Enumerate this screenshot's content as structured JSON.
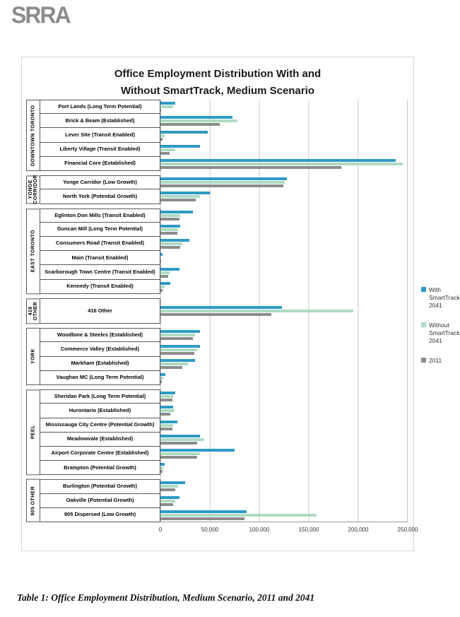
{
  "logo": "SRRA",
  "title_line1": "Office Employment Distribution With and",
  "title_line2": "Without SmartTrack, Medium Scenario",
  "caption": "Table 1: Office Employment Distribution, Medium Scenario, 2011 and 2041",
  "legend": [
    {
      "label": "With SmartTrack, 2041",
      "color": "#2d9bc5"
    },
    {
      "label": "Without SmartTrack, 2041",
      "color": "#aedbc3"
    },
    {
      "label": "2011",
      "color": "#8c8c8c"
    }
  ],
  "axis": {
    "ticks": [
      "0",
      "50,000",
      "100,000",
      "150,000",
      "200,000",
      "250,000"
    ],
    "max": 250000
  },
  "chart_data": {
    "type": "bar",
    "orientation": "horizontal",
    "title": "Office Employment Distribution With and Without SmartTrack, Medium Scenario",
    "xlim": [
      0,
      250000
    ],
    "x_ticks": [
      "0",
      "50,000",
      "100,000",
      "150,000",
      "200,000",
      "250,000"
    ],
    "grid": true,
    "legend_position": "right",
    "series_names": [
      "With SmartTrack, 2041",
      "Without SmartTrack, 2041",
      "2011"
    ],
    "series_colors": [
      "#2d9bc5",
      "#aedbc3",
      "#8c8c8c"
    ],
    "groups": [
      {
        "name": "DOWNTOWN TORONTO",
        "weight": 5,
        "rows": [
          {
            "label": "Port Lands (Long Term Potential)",
            "values": [
              15000,
              13000,
              1000
            ]
          },
          {
            "label": "Brick & Beam (Established)",
            "values": [
              73000,
              78000,
              60000
            ]
          },
          {
            "label": "Lever Site (Transit Enabled)",
            "values": [
              48000,
              4000,
              2000
            ]
          },
          {
            "label": "Liberty Village (Transit Enabled)",
            "values": [
              40000,
              15000,
              9000
            ]
          },
          {
            "label": "Financial Core (Established)",
            "values": [
              238000,
              245000,
              183000
            ]
          }
        ]
      },
      {
        "name": "YONGE CORRIDOR",
        "weight": 2,
        "rows": [
          {
            "label": "Yonge Corridor (Low Growth)",
            "values": [
              128000,
              126000,
              124000
            ]
          },
          {
            "label": "North York (Potential Growth)",
            "values": [
              50000,
              40000,
              36000
            ]
          }
        ]
      },
      {
        "name": "EAST TORONTO",
        "weight": 6,
        "rows": [
          {
            "label": "Eglinton Don Mills (Transit Enabled)",
            "values": [
              33000,
              20000,
              19000
            ]
          },
          {
            "label": "Duncan Mill (Long Term Potential)",
            "values": [
              20000,
              18000,
              17000
            ]
          },
          {
            "label": "Consumers Road (Transit Enabled)",
            "values": [
              29000,
              22000,
              20000
            ]
          },
          {
            "label": "Main (Transit Enabled)",
            "values": [
              2000,
              1000,
              500
            ]
          },
          {
            "label": "Scarborough Town Centre (Transit Enabled)",
            "values": [
              19000,
              9000,
              8000
            ]
          },
          {
            "label": "Kennedy (Transit Enabled)",
            "values": [
              10000,
              4000,
              2000
            ]
          }
        ]
      },
      {
        "name": "416 OTHER",
        "weight": 1.8,
        "rows": [
          {
            "label": "416 Other",
            "values": [
              123000,
              195000,
              112000
            ]
          }
        ]
      },
      {
        "name": "YORK",
        "weight": 4,
        "rows": [
          {
            "label": "Woodbine & Steeles (Established)",
            "values": [
              40000,
              35000,
              33000
            ]
          },
          {
            "label": "Commerce Valley (Established)",
            "values": [
              40000,
              37000,
              34000
            ]
          },
          {
            "label": "Markham (Established)",
            "values": [
              35000,
              28000,
              22000
            ]
          },
          {
            "label": "Vaughan MC (Long Term Potential)",
            "values": [
              5000,
              3000,
              1500
            ]
          }
        ]
      },
      {
        "name": "PEEL",
        "weight": 6,
        "rows": [
          {
            "label": "Sheridan Park (Long Term Potential)",
            "values": [
              15000,
              13000,
              12000
            ]
          },
          {
            "label": "Hurontario (Established)",
            "values": [
              13000,
              14000,
              10000
            ]
          },
          {
            "label": "Mississauga City Centre (Potential Growth)",
            "values": [
              17000,
              13000,
              12000
            ]
          },
          {
            "label": "Meadowvale (Established)",
            "values": [
              40000,
              44000,
              37000
            ]
          },
          {
            "label": "Airport Corporate Centre (Established)",
            "values": [
              75000,
              40000,
              37000
            ]
          },
          {
            "label": "Brampton (Potential Growth)",
            "values": [
              4000,
              3000,
              2000
            ]
          }
        ]
      },
      {
        "name": "905 OTHER",
        "weight": 3,
        "rows": [
          {
            "label": "Burlington (Potential Growth)",
            "values": [
              25000,
              18000,
              15000
            ]
          },
          {
            "label": "Oakville (Potential Growth)",
            "values": [
              19000,
              15000,
              13000
            ]
          },
          {
            "label": "905 Dispersed (Low Growth)",
            "values": [
              87000,
              158000,
              85000
            ]
          }
        ]
      }
    ]
  }
}
